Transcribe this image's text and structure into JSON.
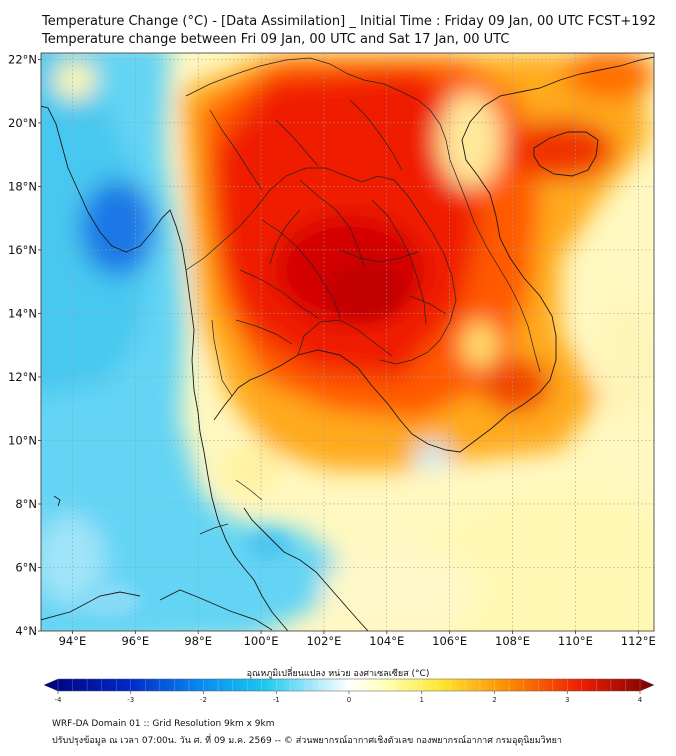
{
  "header": {
    "title_line1": "Temperature Change (°C) - [Data Assimilation] _ Initial Time : Friday 09 Jan, 00 UTC FCST+192",
    "title_line2": "Temperature change between Fri 09 Jan, 00 UTC and Sat 17 Jan, 00 UTC"
  },
  "map": {
    "lat_labels": [
      "22°N",
      "20°N",
      "18°N",
      "16°N",
      "14°N",
      "12°N",
      "10°N",
      "8°N",
      "6°N",
      "4°N"
    ],
    "lon_labels": [
      "94°E",
      "96°E",
      "98°E",
      "100°E",
      "102°E",
      "104°E",
      "106°E",
      "108°E",
      "110°E",
      "112°E"
    ],
    "lat_values": [
      22,
      20,
      18,
      16,
      14,
      12,
      10,
      8,
      6,
      4
    ],
    "lon_values": [
      94,
      96,
      98,
      100,
      102,
      104,
      106,
      108,
      110,
      112
    ],
    "extent": {
      "lon_min": 93,
      "lon_max": 112.5,
      "lat_min": 4,
      "lat_max": 22.2
    }
  },
  "colorbar": {
    "title": "อุณหภูมิเปลี่ยนแปลง หน่วย องศาเซลเซียส (°C)",
    "tick_labels": [
      "-4",
      "-3",
      "-2",
      "-1",
      "0",
      "1",
      "2",
      "3",
      "4"
    ],
    "tick_values": [
      -4,
      -3,
      -2,
      -1,
      0,
      1,
      2,
      3,
      4
    ],
    "range": [
      -4,
      4
    ]
  },
  "footer": {
    "line1": "WRF-DA Domain 01 :: Grid Resolution 9km x 9km",
    "line2": "ปรับปรุงข้อมูล ณ เวลา 07:00น. วัน ศ. ที่ 09 ม.ค. 2569 -- © ส่วนพยากรณ์อากาศเชิงตัวเลข กองพยากรณ์อากาศ กรมอุตุนิยมวิทยา"
  },
  "colors": {
    "neg_dark": "#00007a",
    "neg_blue": "#0050e6",
    "cyan": "#19c8f0",
    "pale_cyan": "#c8f0fa",
    "white": "#ffffff",
    "pale_yellow": "#ffffb4",
    "yellow": "#ffe632",
    "orange": "#ff8c00",
    "red": "#ee1e00",
    "dark_red": "#8c0000",
    "border": "#1a1a1a"
  }
}
